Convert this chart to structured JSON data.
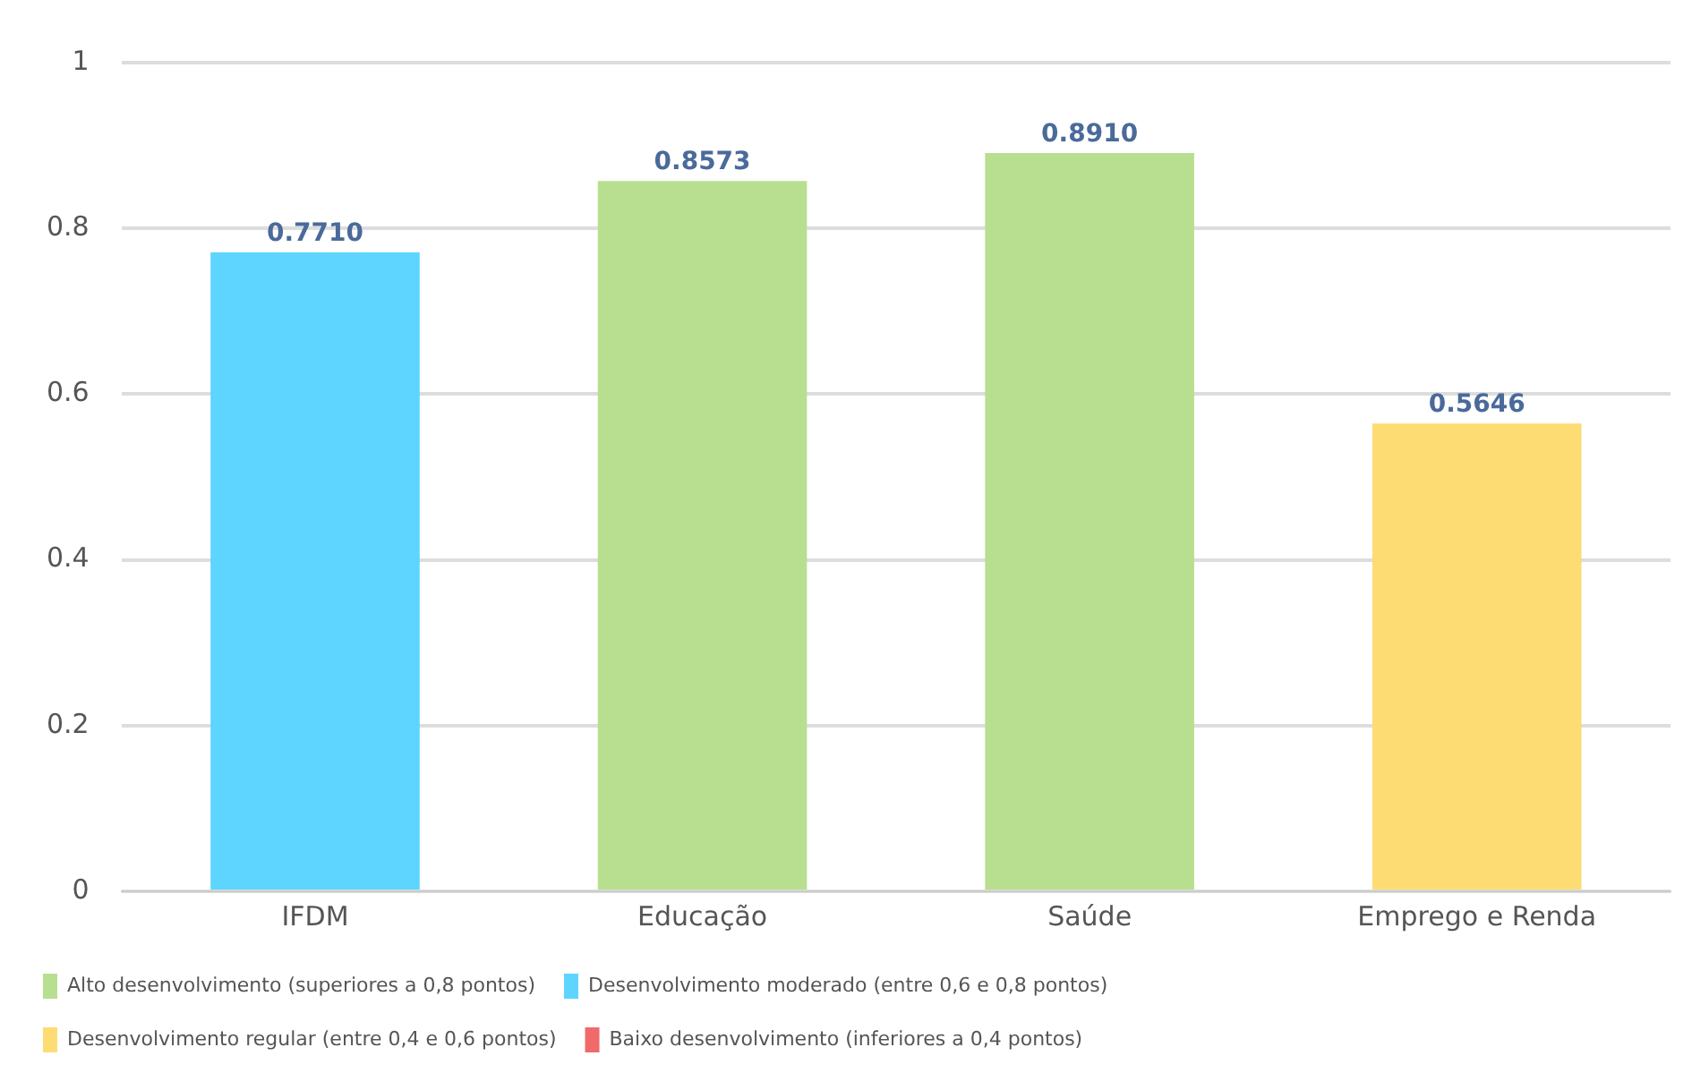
{
  "chart_data": {
    "type": "bar",
    "categories": [
      "IFDM",
      "Educação",
      "Saúde",
      "Emprego e Renda"
    ],
    "stacked": true,
    "series": [
      {
        "name": "Alto desenvolvimento (superiores a 0,8 pontos)",
        "color": "#b8df8f",
        "values": [
          null,
          0.8573,
          0.891,
          null
        ],
        "value_labels": [
          null,
          "0.8573",
          "0.8910",
          null
        ]
      },
      {
        "name": "Desenvolvimento moderado (entre 0,6 e 0,8 pontos)",
        "color": "#5dd5fe",
        "values": [
          0.771,
          null,
          null,
          null
        ],
        "value_labels": [
          "0.7710",
          null,
          null,
          null
        ]
      },
      {
        "name": "Desenvolvimento regular (entre 0,4 e 0,6 pontos)",
        "color": "#fedc74",
        "values": [
          null,
          null,
          null,
          0.5646
        ],
        "value_labels": [
          null,
          null,
          null,
          "0.5646"
        ]
      },
      {
        "name": "Baixo desenvolvimento (inferiores a 0,4 pontos)",
        "color": "#f06a6a",
        "values": [
          null,
          null,
          null,
          null
        ]
      }
    ],
    "ylim": [
      0,
      1
    ],
    "yticks": [
      0,
      {
        "value": 0.2,
        "label": "0.2"
      },
      {
        "value": 0.4,
        "label": "0.4"
      },
      {
        "value": 0.6,
        "label": "0.6"
      },
      {
        "value": 0.8,
        "label": "0.8"
      },
      1
    ],
    "grid": "y",
    "legend": "bottom"
  }
}
